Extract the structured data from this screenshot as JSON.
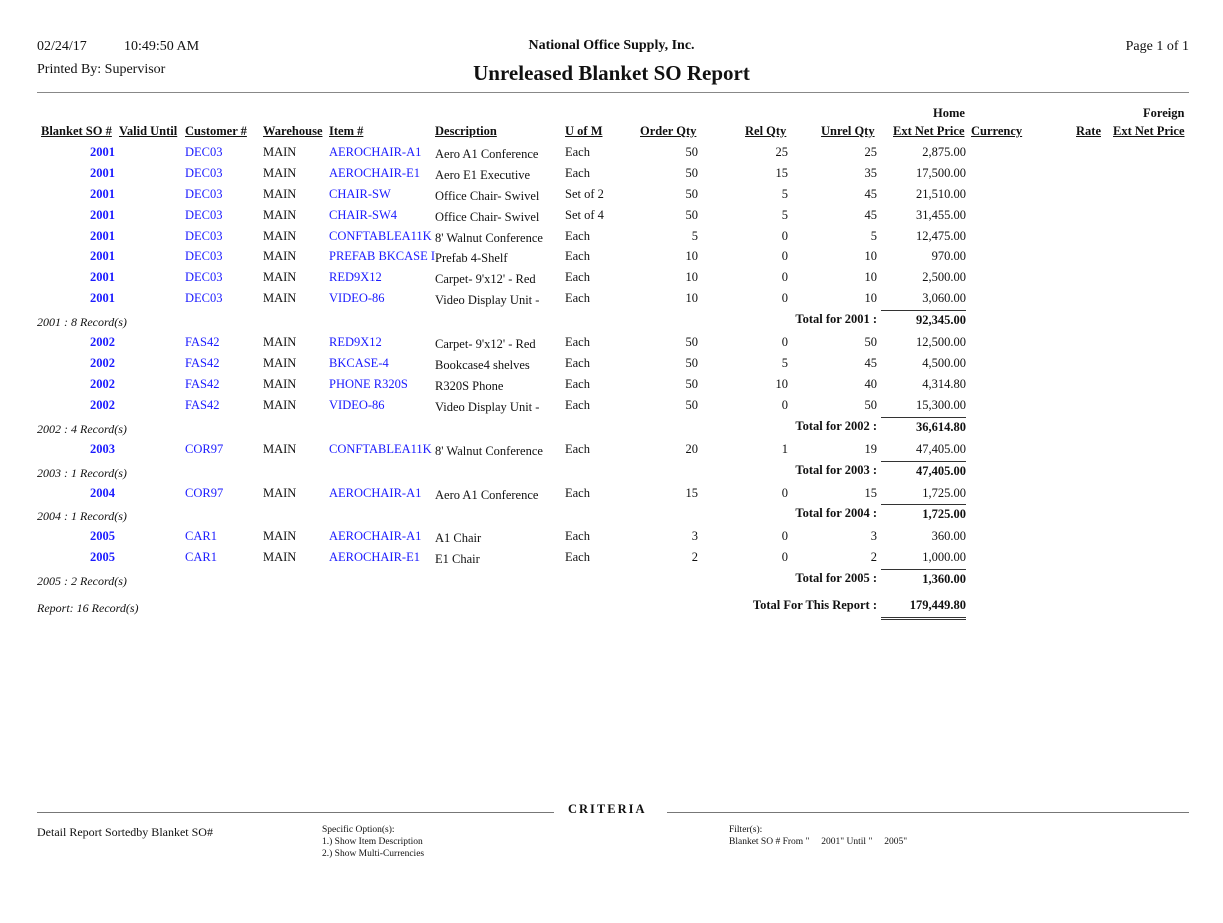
{
  "header": {
    "date": "02/24/17",
    "time": "10:49:50 AM",
    "printed_by": "Printed By: Supervisor",
    "company": "National Office Supply, Inc.",
    "title": "Unreleased Blanket SO Report",
    "page": "Page 1 of  1"
  },
  "columns": {
    "so": "Blanket SO #",
    "valid": "Valid Until",
    "customer": "Customer #",
    "warehouse": "Warehouse",
    "item": "Item #",
    "description": "Description",
    "uofm": "U of M",
    "order": "Order Qty",
    "rel": "Rel Qty",
    "unrel": "Unrel Qty",
    "home_top": "Home",
    "home": "Ext Net Price",
    "currency": "Currency",
    "rate": "Rate",
    "foreign_top": "Foreign",
    "foreign": "Ext Net Price"
  },
  "groups": [
    {
      "rows": [
        [
          "2001",
          "DEC03",
          "MAIN",
          "AEROCHAIR-A1",
          "Aero A1 Conference",
          "Each",
          "50",
          "25",
          "25",
          "2,875.00"
        ],
        [
          "2001",
          "DEC03",
          "MAIN",
          "AEROCHAIR-E1",
          "Aero E1 Executive",
          "Each",
          "50",
          "15",
          "35",
          "17,500.00"
        ],
        [
          "2001",
          "DEC03",
          "MAIN",
          "CHAIR-SW",
          "Office Chair- Swivel",
          "Set of 2",
          "50",
          "5",
          "45",
          "21,510.00"
        ],
        [
          "2001",
          "DEC03",
          "MAIN",
          "CHAIR-SW4",
          "Office Chair- Swivel",
          "Set of 4",
          "50",
          "5",
          "45",
          "31,455.00"
        ],
        [
          "2001",
          "DEC03",
          "MAIN",
          "CONFTABLEA11K",
          "8' Walnut Conference",
          "Each",
          "5",
          "0",
          "5",
          "12,475.00"
        ],
        [
          "2001",
          "DEC03",
          "MAIN",
          "PREFAB BKCASE I",
          "Prefab 4-Shelf",
          "Each",
          "10",
          "0",
          "10",
          "970.00"
        ],
        [
          "2001",
          "DEC03",
          "MAIN",
          "RED9X12",
          "Carpet- 9'x12' - Red",
          "Each",
          "10",
          "0",
          "10",
          "2,500.00"
        ],
        [
          "2001",
          "DEC03",
          "MAIN",
          "VIDEO-86",
          "Video Display Unit -",
          "Each",
          "10",
          "0",
          "10",
          "3,060.00"
        ]
      ],
      "count": "2001 : 8 Record(s)",
      "total_label": "Total for 2001 :",
      "total": "92,345.00"
    },
    {
      "rows": [
        [
          "2002",
          "FAS42",
          "MAIN",
          "RED9X12",
          "Carpet- 9'x12' - Red",
          "Each",
          "50",
          "0",
          "50",
          "12,500.00"
        ],
        [
          "2002",
          "FAS42",
          "MAIN",
          "BKCASE-4",
          "Bookcase4 shelves",
          "Each",
          "50",
          "5",
          "45",
          "4,500.00"
        ],
        [
          "2002",
          "FAS42",
          "MAIN",
          "PHONE R320S",
          "R320S Phone",
          "Each",
          "50",
          "10",
          "40",
          "4,314.80"
        ],
        [
          "2002",
          "FAS42",
          "MAIN",
          "VIDEO-86",
          "Video Display Unit -",
          "Each",
          "50",
          "0",
          "50",
          "15,300.00"
        ]
      ],
      "count": "2002 : 4 Record(s)",
      "total_label": "Total for 2002 :",
      "total": "36,614.80"
    },
    {
      "rows": [
        [
          "2003",
          "COR97",
          "MAIN",
          "CONFTABLEA11K",
          "8' Walnut Conference",
          "Each",
          "20",
          "1",
          "19",
          "47,405.00"
        ]
      ],
      "count": "2003 : 1 Record(s)",
      "total_label": "Total for 2003 :",
      "total": "47,405.00"
    },
    {
      "rows": [
        [
          "2004",
          "COR97",
          "MAIN",
          "AEROCHAIR-A1",
          "Aero A1 Conference",
          "Each",
          "15",
          "0",
          "15",
          "1,725.00"
        ]
      ],
      "count": "2004 : 1 Record(s)",
      "total_label": "Total for 2004 :",
      "total": "1,725.00"
    },
    {
      "rows": [
        [
          "2005",
          "CAR1",
          "MAIN",
          "AEROCHAIR-A1",
          "A1 Chair",
          "Each",
          "3",
          "0",
          "3",
          "360.00"
        ],
        [
          "2005",
          "CAR1",
          "MAIN",
          "AEROCHAIR-E1",
          "E1 Chair",
          "Each",
          "2",
          "0",
          "2",
          "1,000.00"
        ]
      ],
      "count": "2005 : 2 Record(s)",
      "total_label": "Total for 2005 :",
      "total": "1,360.00"
    }
  ],
  "report_total": {
    "count": "Report: 16 Record(s)",
    "label": "Total For This Report :",
    "total": "179,449.80"
  },
  "criteria": {
    "title": "CRITERIA",
    "sort": "Detail Report Sortedby Blanket SO#",
    "options_label": "Specific Option(s):",
    "options": [
      "1.) Show Item Description",
      "2.) Show Multi-Currencies"
    ],
    "filters_label": "Filter(s):",
    "filter": "Blanket SO # From \"     2001\" Until \"     2005\""
  }
}
